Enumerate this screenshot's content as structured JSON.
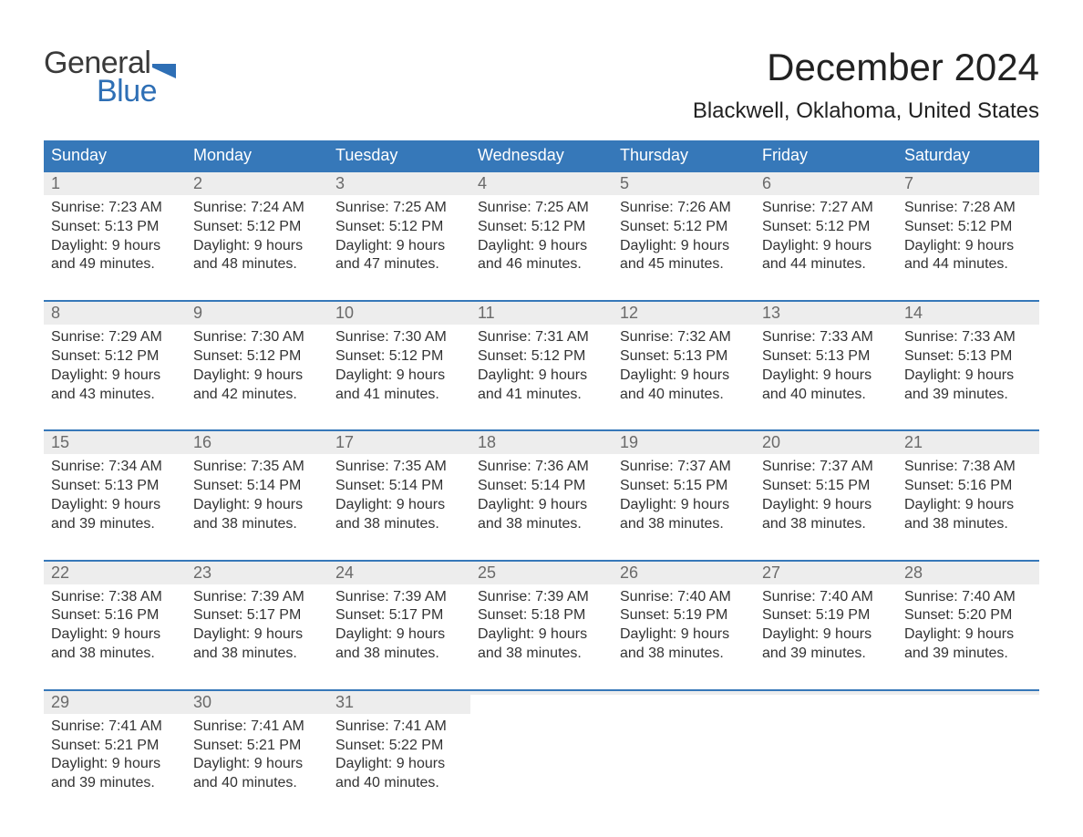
{
  "logo": {
    "text_top": "General",
    "text_bottom": "Blue",
    "flag_color": "#2e6fb5",
    "top_color": "#3a3a3a"
  },
  "title": "December 2024",
  "location": "Blackwell, Oklahoma, United States",
  "colors": {
    "header_bg": "#3678b9",
    "header_text": "#ffffff",
    "daynum_bg": "#ededed",
    "daynum_text": "#6a6a6a",
    "body_text": "#333333",
    "week_border": "#3678b9",
    "page_bg": "#ffffff"
  },
  "typography": {
    "title_fontsize": 42,
    "location_fontsize": 24,
    "dow_fontsize": 18,
    "daynum_fontsize": 18,
    "body_fontsize": 16,
    "font_family": "Arial, Helvetica, sans-serif"
  },
  "day_labels": [
    "Sunday",
    "Monday",
    "Tuesday",
    "Wednesday",
    "Thursday",
    "Friday",
    "Saturday"
  ],
  "weeks": [
    [
      {
        "n": "1",
        "sunrise": "Sunrise: 7:23 AM",
        "sunset": "Sunset: 5:13 PM",
        "d1": "Daylight: 9 hours",
        "d2": "and 49 minutes."
      },
      {
        "n": "2",
        "sunrise": "Sunrise: 7:24 AM",
        "sunset": "Sunset: 5:12 PM",
        "d1": "Daylight: 9 hours",
        "d2": "and 48 minutes."
      },
      {
        "n": "3",
        "sunrise": "Sunrise: 7:25 AM",
        "sunset": "Sunset: 5:12 PM",
        "d1": "Daylight: 9 hours",
        "d2": "and 47 minutes."
      },
      {
        "n": "4",
        "sunrise": "Sunrise: 7:25 AM",
        "sunset": "Sunset: 5:12 PM",
        "d1": "Daylight: 9 hours",
        "d2": "and 46 minutes."
      },
      {
        "n": "5",
        "sunrise": "Sunrise: 7:26 AM",
        "sunset": "Sunset: 5:12 PM",
        "d1": "Daylight: 9 hours",
        "d2": "and 45 minutes."
      },
      {
        "n": "6",
        "sunrise": "Sunrise: 7:27 AM",
        "sunset": "Sunset: 5:12 PM",
        "d1": "Daylight: 9 hours",
        "d2": "and 44 minutes."
      },
      {
        "n": "7",
        "sunrise": "Sunrise: 7:28 AM",
        "sunset": "Sunset: 5:12 PM",
        "d1": "Daylight: 9 hours",
        "d2": "and 44 minutes."
      }
    ],
    [
      {
        "n": "8",
        "sunrise": "Sunrise: 7:29 AM",
        "sunset": "Sunset: 5:12 PM",
        "d1": "Daylight: 9 hours",
        "d2": "and 43 minutes."
      },
      {
        "n": "9",
        "sunrise": "Sunrise: 7:30 AM",
        "sunset": "Sunset: 5:12 PM",
        "d1": "Daylight: 9 hours",
        "d2": "and 42 minutes."
      },
      {
        "n": "10",
        "sunrise": "Sunrise: 7:30 AM",
        "sunset": "Sunset: 5:12 PM",
        "d1": "Daylight: 9 hours",
        "d2": "and 41 minutes."
      },
      {
        "n": "11",
        "sunrise": "Sunrise: 7:31 AM",
        "sunset": "Sunset: 5:12 PM",
        "d1": "Daylight: 9 hours",
        "d2": "and 41 minutes."
      },
      {
        "n": "12",
        "sunrise": "Sunrise: 7:32 AM",
        "sunset": "Sunset: 5:13 PM",
        "d1": "Daylight: 9 hours",
        "d2": "and 40 minutes."
      },
      {
        "n": "13",
        "sunrise": "Sunrise: 7:33 AM",
        "sunset": "Sunset: 5:13 PM",
        "d1": "Daylight: 9 hours",
        "d2": "and 40 minutes."
      },
      {
        "n": "14",
        "sunrise": "Sunrise: 7:33 AM",
        "sunset": "Sunset: 5:13 PM",
        "d1": "Daylight: 9 hours",
        "d2": "and 39 minutes."
      }
    ],
    [
      {
        "n": "15",
        "sunrise": "Sunrise: 7:34 AM",
        "sunset": "Sunset: 5:13 PM",
        "d1": "Daylight: 9 hours",
        "d2": "and 39 minutes."
      },
      {
        "n": "16",
        "sunrise": "Sunrise: 7:35 AM",
        "sunset": "Sunset: 5:14 PM",
        "d1": "Daylight: 9 hours",
        "d2": "and 38 minutes."
      },
      {
        "n": "17",
        "sunrise": "Sunrise: 7:35 AM",
        "sunset": "Sunset: 5:14 PM",
        "d1": "Daylight: 9 hours",
        "d2": "and 38 minutes."
      },
      {
        "n": "18",
        "sunrise": "Sunrise: 7:36 AM",
        "sunset": "Sunset: 5:14 PM",
        "d1": "Daylight: 9 hours",
        "d2": "and 38 minutes."
      },
      {
        "n": "19",
        "sunrise": "Sunrise: 7:37 AM",
        "sunset": "Sunset: 5:15 PM",
        "d1": "Daylight: 9 hours",
        "d2": "and 38 minutes."
      },
      {
        "n": "20",
        "sunrise": "Sunrise: 7:37 AM",
        "sunset": "Sunset: 5:15 PM",
        "d1": "Daylight: 9 hours",
        "d2": "and 38 minutes."
      },
      {
        "n": "21",
        "sunrise": "Sunrise: 7:38 AM",
        "sunset": "Sunset: 5:16 PM",
        "d1": "Daylight: 9 hours",
        "d2": "and 38 minutes."
      }
    ],
    [
      {
        "n": "22",
        "sunrise": "Sunrise: 7:38 AM",
        "sunset": "Sunset: 5:16 PM",
        "d1": "Daylight: 9 hours",
        "d2": "and 38 minutes."
      },
      {
        "n": "23",
        "sunrise": "Sunrise: 7:39 AM",
        "sunset": "Sunset: 5:17 PM",
        "d1": "Daylight: 9 hours",
        "d2": "and 38 minutes."
      },
      {
        "n": "24",
        "sunrise": "Sunrise: 7:39 AM",
        "sunset": "Sunset: 5:17 PM",
        "d1": "Daylight: 9 hours",
        "d2": "and 38 minutes."
      },
      {
        "n": "25",
        "sunrise": "Sunrise: 7:39 AM",
        "sunset": "Sunset: 5:18 PM",
        "d1": "Daylight: 9 hours",
        "d2": "and 38 minutes."
      },
      {
        "n": "26",
        "sunrise": "Sunrise: 7:40 AM",
        "sunset": "Sunset: 5:19 PM",
        "d1": "Daylight: 9 hours",
        "d2": "and 38 minutes."
      },
      {
        "n": "27",
        "sunrise": "Sunrise: 7:40 AM",
        "sunset": "Sunset: 5:19 PM",
        "d1": "Daylight: 9 hours",
        "d2": "and 39 minutes."
      },
      {
        "n": "28",
        "sunrise": "Sunrise: 7:40 AM",
        "sunset": "Sunset: 5:20 PM",
        "d1": "Daylight: 9 hours",
        "d2": "and 39 minutes."
      }
    ],
    [
      {
        "n": "29",
        "sunrise": "Sunrise: 7:41 AM",
        "sunset": "Sunset: 5:21 PM",
        "d1": "Daylight: 9 hours",
        "d2": "and 39 minutes."
      },
      {
        "n": "30",
        "sunrise": "Sunrise: 7:41 AM",
        "sunset": "Sunset: 5:21 PM",
        "d1": "Daylight: 9 hours",
        "d2": "and 40 minutes."
      },
      {
        "n": "31",
        "sunrise": "Sunrise: 7:41 AM",
        "sunset": "Sunset: 5:22 PM",
        "d1": "Daylight: 9 hours",
        "d2": "and 40 minutes."
      },
      {
        "empty": true
      },
      {
        "empty": true
      },
      {
        "empty": true
      },
      {
        "empty": true
      }
    ]
  ]
}
